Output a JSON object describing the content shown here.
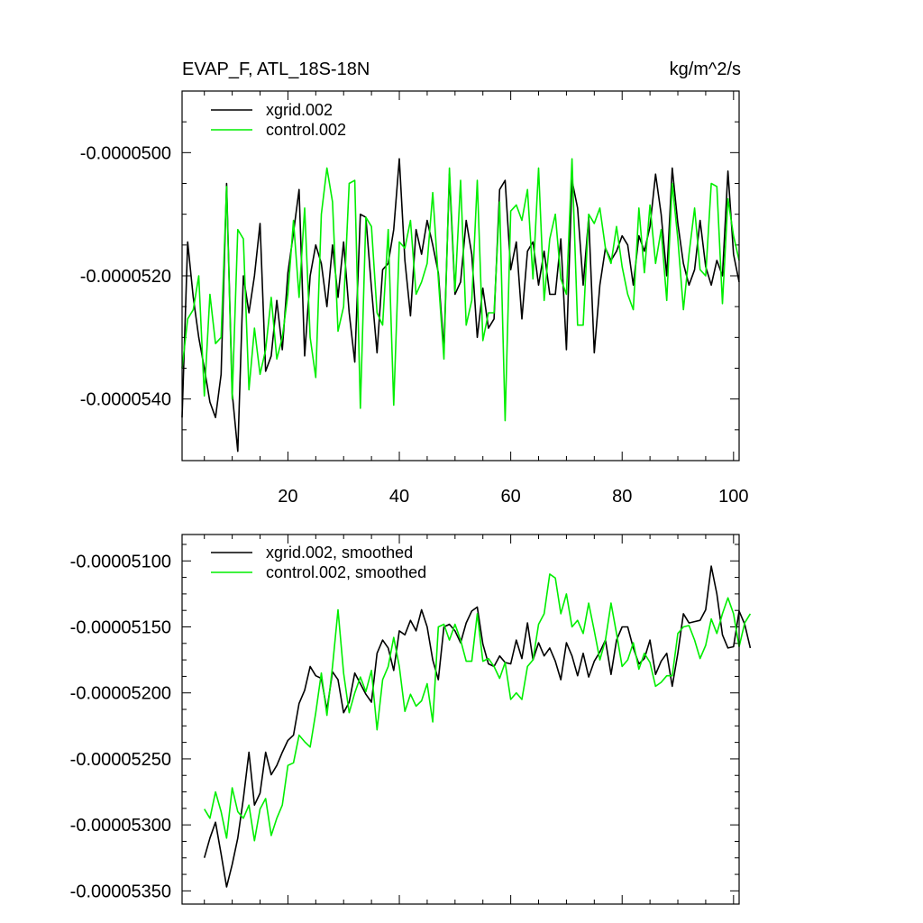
{
  "chart_data": [
    {
      "type": "line",
      "title_left": "EVAP_F, ATL_18S-18N",
      "title_right": "kg/m^2/s",
      "xlim": [
        1,
        101
      ],
      "ylim": [
        -5.5e-05,
        -4.9e-05
      ],
      "y_major_ticks": [
        -5.4e-05,
        -5.2e-05,
        -5e-05
      ],
      "y_tick_labels": [
        "-0.0000540",
        "-0.0000520",
        "-0.0000500"
      ],
      "x_major_ticks": [
        20,
        40,
        60,
        80,
        100
      ],
      "x_tick_labels": [
        "20",
        "40",
        "60",
        "80",
        "100"
      ],
      "grid": false,
      "legend_position": "top-left",
      "series": [
        {
          "name": "xgrid.002",
          "color": "#000000",
          "x_start": 1,
          "values": [
            -5.43e-05,
            -5.145e-05,
            -5.235e-05,
            -5.3e-05,
            -5.35e-05,
            -5.405e-05,
            -5.43e-05,
            -5.36e-05,
            -5.05e-05,
            -5.39e-05,
            -5.485e-05,
            -5.2e-05,
            -5.26e-05,
            -5.2e-05,
            -5.115e-05,
            -5.355e-05,
            -5.33e-05,
            -5.24e-05,
            -5.32e-05,
            -5.195e-05,
            -5.13e-05,
            -5.06e-05,
            -5.33e-05,
            -5.2e-05,
            -5.15e-05,
            -5.18e-05,
            -5.25e-05,
            -5.15e-05,
            -5.235e-05,
            -5.145e-05,
            -5.26e-05,
            -5.34e-05,
            -5.1e-05,
            -5.105e-05,
            -5.22e-05,
            -5.325e-05,
            -5.19e-05,
            -5.18e-05,
            -5.125e-05,
            -5.01e-05,
            -5.175e-05,
            -5.265e-05,
            -5.125e-05,
            -5.165e-05,
            -5.11e-05,
            -5.15e-05,
            -5.195e-05,
            -5.32e-05,
            -5.035e-05,
            -5.23e-05,
            -5.21e-05,
            -5.11e-05,
            -5.165e-05,
            -5.3e-05,
            -5.22e-05,
            -5.285e-05,
            -5.27e-05,
            -5.06e-05,
            -5.045e-05,
            -5.19e-05,
            -5.145e-05,
            -5.27e-05,
            -5.16e-05,
            -5.145e-05,
            -5.215e-05,
            -5.16e-05,
            -5.23e-05,
            -5.23e-05,
            -5.14e-05,
            -5.32e-05,
            -5.045e-05,
            -5.09e-05,
            -5.215e-05,
            -5.105e-05,
            -5.325e-05,
            -5.215e-05,
            -5.155e-05,
            -5.175e-05,
            -5.16e-05,
            -5.135e-05,
            -5.15e-05,
            -5.215e-05,
            -5.135e-05,
            -5.16e-05,
            -5.12e-05,
            -5.035e-05,
            -5.1e-05,
            -5.2e-05,
            -5.025e-05,
            -5.115e-05,
            -5.18e-05,
            -5.215e-05,
            -5.19e-05,
            -5.11e-05,
            -5.185e-05,
            -5.215e-05,
            -5.175e-05,
            -5.2e-05,
            -5.03e-05,
            -5.165e-05,
            -5.21e-05
          ]
        },
        {
          "name": "control.002",
          "color": "#00ee00",
          "x_start": 1,
          "values": [
            -5.35e-05,
            -5.27e-05,
            -5.255e-05,
            -5.2e-05,
            -5.395e-05,
            -5.23e-05,
            -5.31e-05,
            -5.3e-05,
            -5.055e-05,
            -5.4e-05,
            -5.125e-05,
            -5.14e-05,
            -5.385e-05,
            -5.285e-05,
            -5.36e-05,
            -5.32e-05,
            -5.235e-05,
            -5.335e-05,
            -5.3e-05,
            -5.23e-05,
            -5.11e-05,
            -5.235e-05,
            -5.09e-05,
            -5.3e-05,
            -5.365e-05,
            -5.1e-05,
            -5.025e-05,
            -5.08e-05,
            -5.29e-05,
            -5.25e-05,
            -5.05e-05,
            -5.045e-05,
            -5.415e-05,
            -5.105e-05,
            -5.12e-05,
            -5.26e-05,
            -5.28e-05,
            -5.125e-05,
            -5.41e-05,
            -5.145e-05,
            -5.155e-05,
            -5.11e-05,
            -5.23e-05,
            -5.21e-05,
            -5.18e-05,
            -5.065e-05,
            -5.205e-05,
            -5.335e-05,
            -5.025e-05,
            -5.225e-05,
            -5.045e-05,
            -5.28e-05,
            -5.24e-05,
            -5.045e-05,
            -5.305e-05,
            -5.26e-05,
            -5.26e-05,
            -5.08e-05,
            -5.435e-05,
            -5.095e-05,
            -5.085e-05,
            -5.11e-05,
            -5.06e-05,
            -5.205e-05,
            -5.025e-05,
            -5.24e-05,
            -5.14e-05,
            -5.1e-05,
            -5.205e-05,
            -5.23e-05,
            -5.01e-05,
            -5.28e-05,
            -5.28e-05,
            -5.1e-05,
            -5.115e-05,
            -5.09e-05,
            -5.155e-05,
            -5.18e-05,
            -5.12e-05,
            -5.185e-05,
            -5.23e-05,
            -5.255e-05,
            -5.09e-05,
            -5.195e-05,
            -5.085e-05,
            -5.18e-05,
            -5.125e-05,
            -5.24e-05,
            -5.05e-05,
            -5.14e-05,
            -5.255e-05,
            -5.165e-05,
            -5.09e-05,
            -5.19e-05,
            -5.2e-05,
            -5.05e-05,
            -5.055e-05,
            -5.245e-05,
            -5.075e-05,
            -5.135e-05,
            -5.175e-05
          ]
        }
      ]
    },
    {
      "type": "line",
      "xlim": [
        1,
        101
      ],
      "ylim": [
        -5.36e-05,
        -5.08e-05
      ],
      "y_major_ticks": [
        -5.35e-05,
        -5.3e-05,
        -5.25e-05,
        -5.2e-05,
        -5.15e-05,
        -5.1e-05
      ],
      "y_tick_labels": [
        "-0.00005350",
        "-0.00005300",
        "-0.00005250",
        "-0.00005200",
        "-0.00005150",
        "-0.00005100"
      ],
      "x_major_ticks": [
        20,
        40,
        60,
        80,
        100
      ],
      "grid": false,
      "legend_position": "top-left",
      "series": [
        {
          "name": "xgrid.002, smoothed",
          "color": "#000000",
          "x_start": 5,
          "values": [
            -5.325e-05,
            -5.31e-05,
            -5.298e-05,
            -5.322e-05,
            -5.347e-05,
            -5.33e-05,
            -5.31e-05,
            -5.28e-05,
            -5.245e-05,
            -5.285e-05,
            -5.276e-05,
            -5.245e-05,
            -5.262e-05,
            -5.255e-05,
            -5.245e-05,
            -5.236e-05,
            -5.232e-05,
            -5.208e-05,
            -5.198e-05,
            -5.18e-05,
            -5.187e-05,
            -5.189e-05,
            -5.213e-05,
            -5.184e-05,
            -5.19e-05,
            -5.215e-05,
            -5.207e-05,
            -5.185e-05,
            -5.193e-05,
            -5.201e-05,
            -5.207e-05,
            -5.17e-05,
            -5.16e-05,
            -5.166e-05,
            -5.183e-05,
            -5.153e-05,
            -5.156e-05,
            -5.145e-05,
            -5.153e-05,
            -5.137e-05,
            -5.15e-05,
            -5.175e-05,
            -5.19e-05,
            -5.15e-05,
            -5.148e-05,
            -5.153e-05,
            -5.162e-05,
            -5.147e-05,
            -5.138e-05,
            -5.135e-05,
            -5.163e-05,
            -5.178e-05,
            -5.18e-05,
            -5.172e-05,
            -5.177e-05,
            -5.178e-05,
            -5.16e-05,
            -5.174e-05,
            -5.147e-05,
            -5.175e-05,
            -5.162e-05,
            -5.172e-05,
            -5.166e-05,
            -5.176e-05,
            -5.19e-05,
            -5.162e-05,
            -5.172e-05,
            -5.187e-05,
            -5.17e-05,
            -5.188e-05,
            -5.176e-05,
            -5.169e-05,
            -5.16e-05,
            -5.186e-05,
            -5.16e-05,
            -5.15e-05,
            -5.15e-05,
            -5.166e-05,
            -5.178e-05,
            -5.174e-05,
            -5.16e-05,
            -5.186e-05,
            -5.176e-05,
            -5.17e-05,
            -5.195e-05,
            -5.17e-05,
            -5.14e-05,
            -5.147e-05,
            -5.146e-05,
            -5.145e-05,
            -5.137e-05,
            -5.104e-05,
            -5.125e-05,
            -5.156e-05,
            -5.166e-05,
            -5.165e-05,
            -5.138e-05,
            -5.148e-05,
            -5.166e-05
          ]
        },
        {
          "name": "control.002, smoothed",
          "color": "#00ee00",
          "x_start": 5,
          "values": [
            -5.288e-05,
            -5.295e-05,
            -5.275e-05,
            -5.29e-05,
            -5.31e-05,
            -5.272e-05,
            -5.29e-05,
            -5.295e-05,
            -5.285e-05,
            -5.312e-05,
            -5.288e-05,
            -5.28e-05,
            -5.308e-05,
            -5.295e-05,
            -5.285e-05,
            -5.255e-05,
            -5.253e-05,
            -5.232e-05,
            -5.237e-05,
            -5.241e-05,
            -5.215e-05,
            -5.185e-05,
            -5.217e-05,
            -5.18e-05,
            -5.137e-05,
            -5.185e-05,
            -5.215e-05,
            -5.2e-05,
            -5.188e-05,
            -5.199e-05,
            -5.183e-05,
            -5.228e-05,
            -5.19e-05,
            -5.18e-05,
            -5.158e-05,
            -5.18e-05,
            -5.214e-05,
            -5.201e-05,
            -5.21e-05,
            -5.206e-05,
            -5.193e-05,
            -5.222e-05,
            -5.15e-05,
            -5.148e-05,
            -5.16e-05,
            -5.148e-05,
            -5.16e-05,
            -5.176e-05,
            -5.176e-05,
            -5.14e-05,
            -5.176e-05,
            -5.174e-05,
            -5.18e-05,
            -5.189e-05,
            -5.177e-05,
            -5.205e-05,
            -5.2e-05,
            -5.205e-05,
            -5.18e-05,
            -5.175e-05,
            -5.148e-05,
            -5.14e-05,
            -5.11e-05,
            -5.113e-05,
            -5.14e-05,
            -5.125e-05,
            -5.15e-05,
            -5.145e-05,
            -5.155e-05,
            -5.132e-05,
            -5.153e-05,
            -5.175e-05,
            -5.16e-05,
            -5.132e-05,
            -5.155e-05,
            -5.18e-05,
            -5.175e-05,
            -5.162e-05,
            -5.182e-05,
            -5.17e-05,
            -5.177e-05,
            -5.195e-05,
            -5.192e-05,
            -5.187e-05,
            -5.187e-05,
            -5.155e-05,
            -5.15e-05,
            -5.149e-05,
            -5.16e-05,
            -5.174e-05,
            -5.164e-05,
            -5.144e-05,
            -5.155e-05,
            -5.14e-05,
            -5.128e-05,
            -5.14e-05,
            -5.165e-05,
            -5.147e-05,
            -5.14e-05
          ]
        }
      ]
    }
  ]
}
